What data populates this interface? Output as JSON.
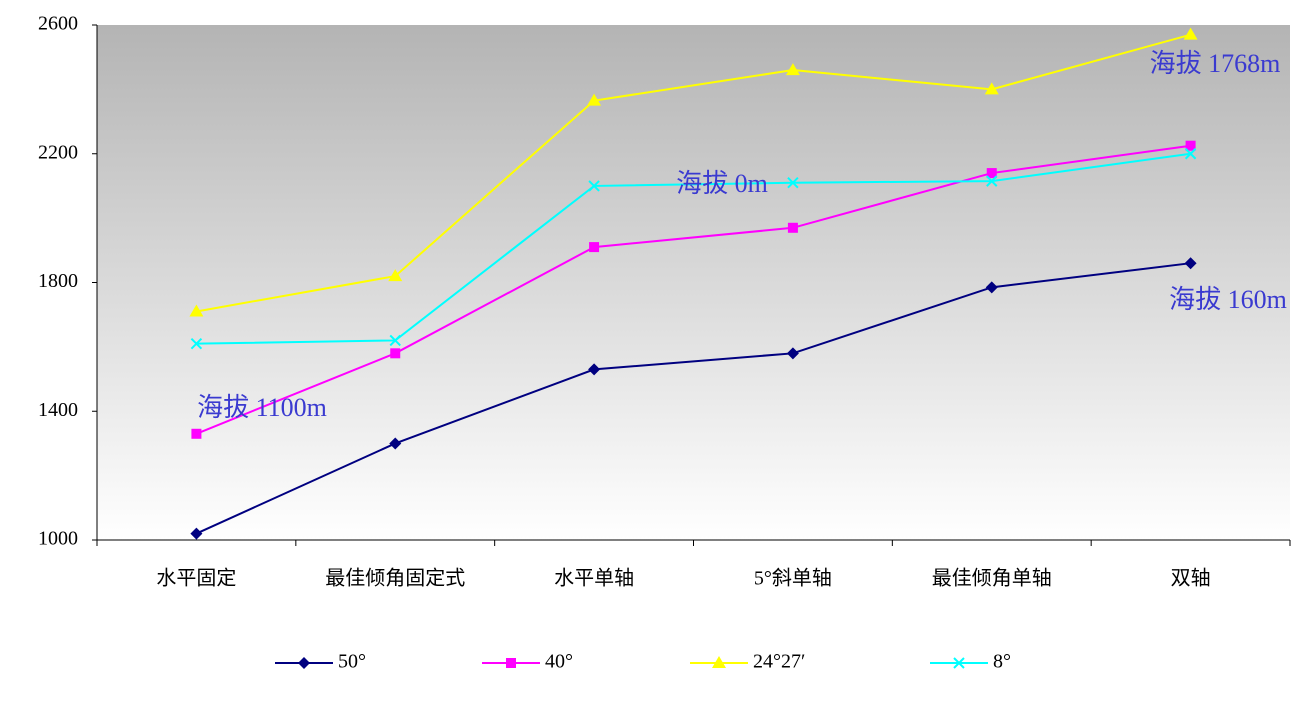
{
  "chart_data": {
    "type": "line",
    "categories": [
      "水平固定",
      "最佳倾角固定式",
      "水平单轴",
      "5°斜单轴",
      "最佳倾角单轴",
      "双轴"
    ],
    "series": [
      {
        "name": "50°",
        "color": "#000080",
        "marker": "diamond",
        "values": [
          1020,
          1300,
          1530,
          1580,
          1785,
          1860
        ]
      },
      {
        "name": "40°",
        "color": "#ff00ff",
        "marker": "square",
        "values": [
          1330,
          1580,
          1910,
          1970,
          2140,
          2225
        ]
      },
      {
        "name": "24°27′",
        "color": "#ffff00",
        "marker": "triangle",
        "values": [
          1710,
          1820,
          2365,
          2460,
          2400,
          2570
        ]
      },
      {
        "name": "8°",
        "color": "#00ffff",
        "marker": "x",
        "values": [
          1610,
          1620,
          2100,
          2110,
          2115,
          2200
        ]
      }
    ],
    "ylim": [
      1000,
      2600
    ],
    "yticks": [
      1000,
      1400,
      1800,
      2200,
      2600
    ],
    "annotations": [
      "海拔 1768m",
      "海拔 0m",
      "海拔 160m",
      "海拔 1100m"
    ],
    "legend": "bottom"
  }
}
